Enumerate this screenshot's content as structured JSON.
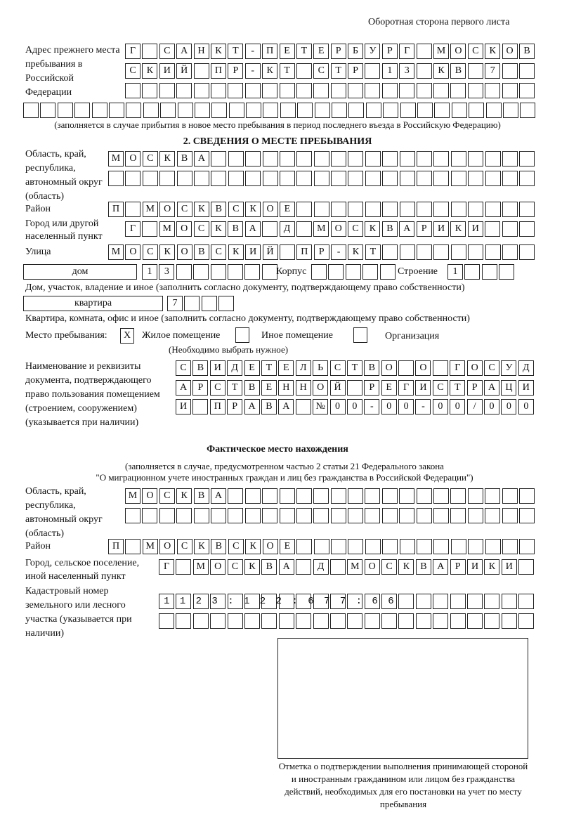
{
  "header": {
    "page_note": "Оборотная сторона первого листа"
  },
  "previous_address": {
    "label": "Адрес прежнего места пребывания в Российской Федерации",
    "rows": [
      "Г САНКТ-ПЕТЕРБУРГ МОСКОВ",
      "СКИЙ ПР-КТ СТР 13 КВ 7",
      "",
      ""
    ],
    "note": "(заполняется в случае прибытия в новое место пребывания в период последнего въезда в Российскую Федерацию)"
  },
  "section2": {
    "title": "2. СВЕДЕНИЯ О МЕСТЕ ПРЕБЫВАНИЯ",
    "region_label": "Область, край, республика, автономный округ (область)",
    "region_rows": [
      "МОСКВА",
      ""
    ],
    "district_label": "Район",
    "district": "П МОСКВСКОЕ",
    "city_label": "Город или другой населенный пункт",
    "city": "Г МОСКВА Д МОСКВАРИКИ",
    "street_label": "Улица",
    "street": "МОСКОВСКИЙ ПР-КТ",
    "house_type": "дом",
    "house": "13",
    "korpus_label": "Корпус",
    "korpus": "",
    "building_label": "Строение",
    "building": "1",
    "house_note": "Дом, участок, владение и иное (заполнить согласно документу, подтверждающему право собственности)",
    "apt_type": "квартира",
    "apt": "7",
    "apt_note": "Квартира, комната, офис и иное (заполнить согласно документу, подтверждающему право собственности)",
    "stay_label": "Место пребывания:",
    "options": [
      {
        "label": "Жилое помещение",
        "mark": "X"
      },
      {
        "label": "Иное помещение",
        "mark": ""
      },
      {
        "label": "Организация",
        "mark": ""
      }
    ],
    "choose_note": "(Необходимо выбрать нужное)",
    "doc_label": "Наименование и реквизиты документа, подтверждающего право пользования помещением (строением, сооружением) (указывается при наличии)",
    "doc_rows": [
      "СВИДЕТЕЛЬСТВО О ГОСУД",
      "АРСТВЕННОЙ РЕГИСТРАЦИ",
      "И ПРАВА №00-00-00/000"
    ]
  },
  "actual": {
    "title": "Фактическое место нахождения",
    "note1": "(заполняется в случае, предусмотренном частью 2 статьи 21 Федерального закона",
    "note2": "\"О миграционном учете иностранных граждан и лиц без гражданства в Российской Федерации\")",
    "region_label": "Область, край, республика, автономный округ (область)",
    "region_rows": [
      "МОСКВА",
      ""
    ],
    "district_label": "Район",
    "district": "П МОСКВСКОЕ",
    "city_label": "Город, сельское поселение, иной населенный пункт",
    "city": "Г МОСКВА Д МОСКВАРИКИ",
    "cadastre_label": "Кадастровый номер земельного или лесного участка (указывается при наличии)",
    "cadastre_rows": [
      "1123:122:677:66",
      ""
    ]
  },
  "stamp": {
    "caption": "Отметка о подтверждении выполнения принимающей стороной и иностранным гражданином или лицом без гражданства действий, необходимых для его постановки на учет по месту пребывания"
  }
}
